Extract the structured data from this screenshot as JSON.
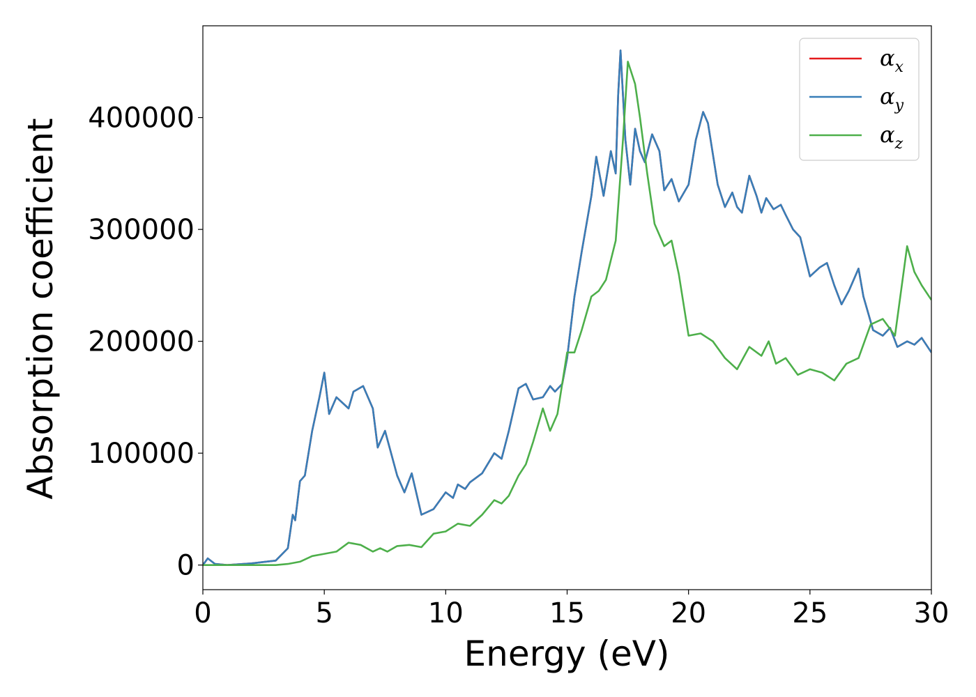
{
  "chart_data": {
    "type": "line",
    "title": "",
    "xlabel": "Energy (eV)",
    "ylabel": "Absorption coefficient",
    "xlim": [
      0,
      30
    ],
    "ylim": [
      -22000,
      482000
    ],
    "xticks": [
      0,
      5,
      10,
      15,
      20,
      25,
      30
    ],
    "xtick_labels": [
      "0",
      "5",
      "10",
      "15",
      "20",
      "25",
      "30"
    ],
    "yticks": [
      0,
      100000,
      200000,
      300000,
      400000
    ],
    "ytick_labels": [
      "0",
      "100000",
      "200000",
      "300000",
      "400000"
    ],
    "grid": false,
    "legend_position": "top-right",
    "series": [
      {
        "name": "α_x",
        "symbol": "α",
        "subscript": "x",
        "color": "#e41a1c",
        "x": [
          0,
          0.2,
          0.5,
          1,
          2,
          3,
          3.5,
          3.7,
          3.8,
          4,
          4.2,
          4.5,
          4.8,
          5,
          5.2,
          5.5,
          6,
          6.2,
          6.6,
          7,
          7.2,
          7.5,
          8,
          8.3,
          8.6,
          9,
          9.5,
          10,
          10.3,
          10.5,
          10.8,
          11,
          11.5,
          12,
          12.3,
          12.6,
          13,
          13.3,
          13.6,
          14,
          14.3,
          14.5,
          14.8,
          15,
          15.3,
          15.6,
          16,
          16.2,
          16.5,
          16.8,
          17,
          17.1,
          17.2,
          17.4,
          17.6,
          17.8,
          18,
          18.2,
          18.5,
          18.8,
          19,
          19.3,
          19.6,
          20,
          20.3,
          20.6,
          20.8,
          21.2,
          21.5,
          21.8,
          22,
          22.2,
          22.5,
          22.8,
          23,
          23.2,
          23.5,
          23.8,
          24,
          24.3,
          24.6,
          25,
          25.4,
          25.7,
          26,
          26.3,
          26.6,
          27,
          27.2,
          27.6,
          28,
          28.3,
          28.6,
          29,
          29.3,
          29.6,
          30
        ],
        "y": [
          0,
          6000,
          1000,
          0,
          1500,
          4000,
          15000,
          45000,
          40000,
          75000,
          80000,
          120000,
          150000,
          172000,
          135000,
          150000,
          140000,
          155000,
          160000,
          140000,
          105000,
          120000,
          80000,
          65000,
          82000,
          45000,
          50000,
          65000,
          60000,
          72000,
          68000,
          74000,
          82000,
          100000,
          95000,
          120000,
          158000,
          162000,
          148000,
          150000,
          160000,
          155000,
          162000,
          185000,
          240000,
          280000,
          330000,
          365000,
          330000,
          370000,
          350000,
          420000,
          460000,
          380000,
          340000,
          390000,
          370000,
          360000,
          385000,
          370000,
          335000,
          345000,
          325000,
          340000,
          380000,
          405000,
          395000,
          340000,
          320000,
          333000,
          320000,
          315000,
          348000,
          330000,
          315000,
          328000,
          318000,
          322000,
          313000,
          300000,
          293000,
          258000,
          266000,
          270000,
          250000,
          233000,
          245000,
          265000,
          240000,
          210000,
          205000,
          212000,
          195000,
          200000,
          197000,
          203000,
          190000
        ]
      },
      {
        "name": "α_y",
        "symbol": "α",
        "subscript": "y",
        "color": "#377eb8",
        "x": [
          0,
          0.2,
          0.5,
          1,
          2,
          3,
          3.5,
          3.7,
          3.8,
          4,
          4.2,
          4.5,
          4.8,
          5,
          5.2,
          5.5,
          6,
          6.2,
          6.6,
          7,
          7.2,
          7.5,
          8,
          8.3,
          8.6,
          9,
          9.5,
          10,
          10.3,
          10.5,
          10.8,
          11,
          11.5,
          12,
          12.3,
          12.6,
          13,
          13.3,
          13.6,
          14,
          14.3,
          14.5,
          14.8,
          15,
          15.3,
          15.6,
          16,
          16.2,
          16.5,
          16.8,
          17,
          17.1,
          17.2,
          17.4,
          17.6,
          17.8,
          18,
          18.2,
          18.5,
          18.8,
          19,
          19.3,
          19.6,
          20,
          20.3,
          20.6,
          20.8,
          21.2,
          21.5,
          21.8,
          22,
          22.2,
          22.5,
          22.8,
          23,
          23.2,
          23.5,
          23.8,
          24,
          24.3,
          24.6,
          25,
          25.4,
          25.7,
          26,
          26.3,
          26.6,
          27,
          27.2,
          27.6,
          28,
          28.3,
          28.6,
          29,
          29.3,
          29.6,
          30
        ],
        "y": [
          0,
          6000,
          1000,
          0,
          1500,
          4000,
          15000,
          45000,
          40000,
          75000,
          80000,
          120000,
          150000,
          172000,
          135000,
          150000,
          140000,
          155000,
          160000,
          140000,
          105000,
          120000,
          80000,
          65000,
          82000,
          45000,
          50000,
          65000,
          60000,
          72000,
          68000,
          74000,
          82000,
          100000,
          95000,
          120000,
          158000,
          162000,
          148000,
          150000,
          160000,
          155000,
          162000,
          185000,
          240000,
          280000,
          330000,
          365000,
          330000,
          370000,
          350000,
          420000,
          460000,
          380000,
          340000,
          390000,
          370000,
          360000,
          385000,
          370000,
          335000,
          345000,
          325000,
          340000,
          380000,
          405000,
          395000,
          340000,
          320000,
          333000,
          320000,
          315000,
          348000,
          330000,
          315000,
          328000,
          318000,
          322000,
          313000,
          300000,
          293000,
          258000,
          266000,
          270000,
          250000,
          233000,
          245000,
          265000,
          240000,
          210000,
          205000,
          212000,
          195000,
          200000,
          197000,
          203000,
          190000
        ]
      },
      {
        "name": "α_z",
        "symbol": "α",
        "subscript": "z",
        "color": "#4daf4a",
        "x": [
          0,
          1,
          2,
          3,
          3.5,
          4,
          4.5,
          5,
          5.5,
          6,
          6.5,
          7,
          7.3,
          7.6,
          8,
          8.5,
          9,
          9.5,
          10,
          10.5,
          11,
          11.5,
          12,
          12.3,
          12.6,
          13,
          13.3,
          13.6,
          14,
          14.3,
          14.6,
          15,
          15.3,
          15.6,
          16,
          16.3,
          16.6,
          17,
          17.3,
          17.5,
          17.8,
          18,
          18.3,
          18.6,
          19,
          19.3,
          19.6,
          20,
          20.5,
          21,
          21.5,
          22,
          22.5,
          23,
          23.3,
          23.6,
          24,
          24.5,
          25,
          25.5,
          26,
          26.5,
          27,
          27.5,
          28,
          28.5,
          29,
          29.3,
          29.6,
          30
        ],
        "y": [
          0,
          0,
          0,
          0,
          1000,
          3000,
          8000,
          10000,
          12000,
          20000,
          18000,
          12000,
          15000,
          12000,
          17000,
          18000,
          16000,
          28000,
          30000,
          37000,
          35000,
          45000,
          58000,
          55000,
          62000,
          80000,
          90000,
          110000,
          140000,
          120000,
          135000,
          190000,
          190000,
          210000,
          240000,
          245000,
          255000,
          290000,
          380000,
          450000,
          430000,
          400000,
          350000,
          305000,
          285000,
          290000,
          260000,
          205000,
          207000,
          200000,
          185000,
          175000,
          195000,
          187000,
          200000,
          180000,
          185000,
          170000,
          175000,
          172000,
          165000,
          180000,
          185000,
          215000,
          220000,
          205000,
          285000,
          262000,
          250000,
          237000
        ]
      }
    ]
  }
}
